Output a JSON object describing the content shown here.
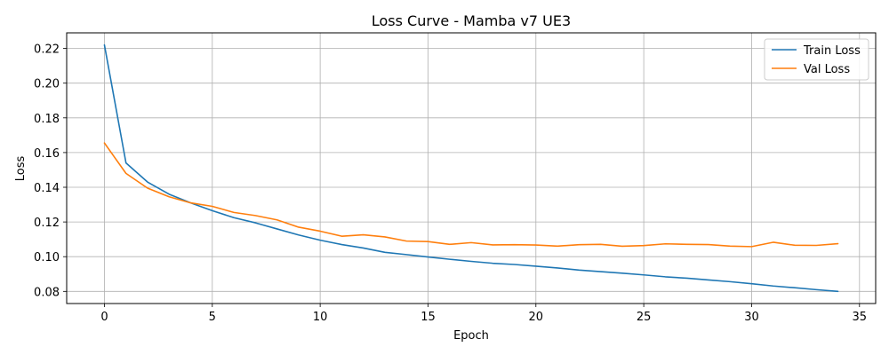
{
  "chart_data": {
    "type": "line",
    "title": "Loss Curve - Mamba v7 UE3",
    "xlabel": "Epoch",
    "ylabel": "Loss",
    "xlim": [
      -1.75,
      35.75
    ],
    "ylim": [
      0.073,
      0.229
    ],
    "xticks": [
      0,
      5,
      10,
      15,
      20,
      25,
      30,
      35
    ],
    "yticks": [
      0.08,
      0.1,
      0.12,
      0.14,
      0.16,
      0.18,
      0.2,
      0.22
    ],
    "ytick_labels": [
      "0.08",
      "0.10",
      "0.12",
      "0.14",
      "0.16",
      "0.18",
      "0.20",
      "0.22"
    ],
    "grid": true,
    "legend_position": "top-right",
    "x": [
      0,
      1,
      2,
      3,
      4,
      5,
      6,
      7,
      8,
      9,
      10,
      11,
      12,
      13,
      14,
      15,
      16,
      17,
      18,
      19,
      20,
      21,
      22,
      23,
      24,
      25,
      26,
      27,
      28,
      29,
      30,
      31,
      32,
      33,
      34
    ],
    "series": [
      {
        "name": "Train Loss",
        "color": "#1f77b4",
        "values": [
          0.222,
          0.154,
          0.143,
          0.136,
          0.131,
          0.1265,
          0.1225,
          0.1195,
          0.116,
          0.1125,
          0.1095,
          0.107,
          0.105,
          0.1025,
          0.1012,
          0.0998,
          0.0985,
          0.0973,
          0.0962,
          0.0955,
          0.0945,
          0.0935,
          0.0923,
          0.0914,
          0.0905,
          0.0895,
          0.0884,
          0.0876,
          0.0866,
          0.0856,
          0.0844,
          0.0831,
          0.0821,
          0.081,
          0.08
        ]
      },
      {
        "name": "Val Loss",
        "color": "#ff7f0e",
        "values": [
          0.1655,
          0.148,
          0.1395,
          0.1345,
          0.131,
          0.129,
          0.1255,
          0.1237,
          0.1212,
          0.117,
          0.1147,
          0.1118,
          0.1126,
          0.1114,
          0.109,
          0.1087,
          0.1071,
          0.1081,
          0.1068,
          0.1069,
          0.1067,
          0.1061,
          0.1069,
          0.1071,
          0.106,
          0.1064,
          0.1074,
          0.1071,
          0.107,
          0.1061,
          0.1058,
          0.1083,
          0.1066,
          0.1065,
          0.1075
        ]
      }
    ]
  }
}
